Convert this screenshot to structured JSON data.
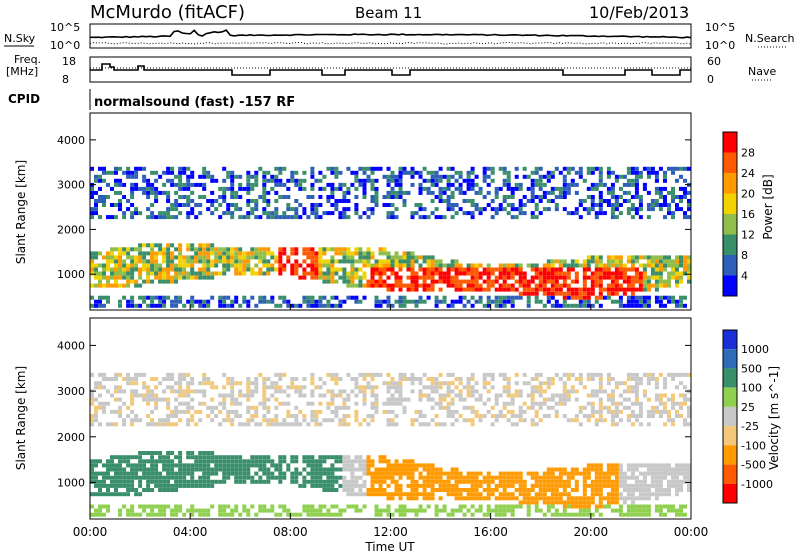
{
  "header": {
    "station": "McMurdo (fitACF)",
    "beam": "Beam 11",
    "date": "10/Feb/2013"
  },
  "noise_panel": {
    "left_label": "N.Sky",
    "right_label": "N.Search",
    "left_ticks": [
      "10^5",
      "10^0"
    ],
    "right_ticks": [
      "10^5",
      "10^0"
    ]
  },
  "freq_panel": {
    "left_label_1": "Freq.",
    "left_label_2": "[MHz]",
    "left_ticks": [
      "18",
      "8"
    ],
    "right_label": "Nave",
    "right_ticks": [
      "60",
      "0"
    ]
  },
  "cpid_panel": {
    "label": "CPID",
    "text": "normalsound (fast) -157 RF"
  },
  "colors": {
    "power_scale": [
      "#0000ff",
      "#2e5fb8",
      "#3a8f6b",
      "#8fbf4a",
      "#f2d200",
      "#ff9a00",
      "#ff5a00",
      "#ff0000"
    ],
    "velocity_scale": [
      "#ff0000",
      "#ff5a00",
      "#ff9a00",
      "#f2c97a",
      "#c8c8c8",
      "#8fd14f",
      "#3a8f6b",
      "#2f6cb8",
      "#1a2fd8"
    ]
  },
  "chart_data": [
    {
      "type": "heatmap",
      "title": "",
      "xlabel": "Time UT",
      "ylabel": "Slant Range [km]",
      "x_ticks": [
        "00:00",
        "04:00",
        "08:00",
        "12:00",
        "16:00",
        "20:00",
        "00:00"
      ],
      "y_ticks": [
        "1000",
        "2000",
        "3000",
        "4000"
      ],
      "ylim": [
        200,
        4600
      ],
      "colorbar_label": "Power [dB]",
      "colorbar_ticks": [
        "4",
        "8",
        "12",
        "16",
        "20",
        "24",
        "28"
      ]
    },
    {
      "type": "heatmap",
      "title": "",
      "xlabel": "Time UT",
      "ylabel": "Slant Range [km]",
      "x_ticks": [
        "00:00",
        "04:00",
        "08:00",
        "12:00",
        "16:00",
        "20:00",
        "00:00"
      ],
      "y_ticks": [
        "1000",
        "2000",
        "3000",
        "4000"
      ],
      "ylim": [
        200,
        4600
      ],
      "colorbar_label": "Velocity [m s^-1]",
      "colorbar_ticks": [
        "1000",
        "500",
        "100",
        "25",
        "-25",
        "-100",
        "-500",
        "-1000"
      ]
    }
  ]
}
